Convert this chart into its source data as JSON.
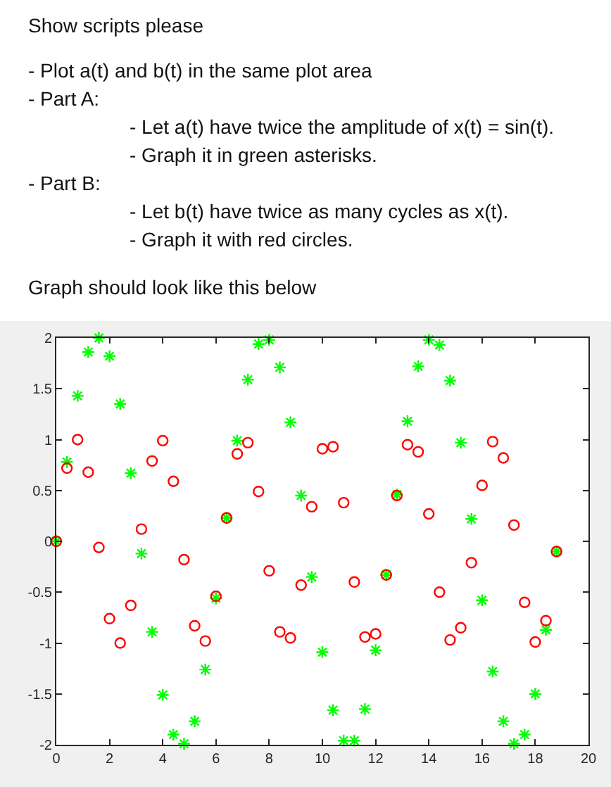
{
  "chart_data": {
    "type": "scatter",
    "title": "Show scripts please",
    "annotations": [
      "- Plot a(t) and b(t) in the same plot area",
      "- Part A:",
      "- Let a(t) have twice the amplitude of x(t) = sin(t).",
      "- Graph it in green asterisks.",
      "- Part B:",
      "- Let b(t) have twice as many cycles as x(t).",
      "- Graph it with red circles.",
      "Graph should look like this below"
    ],
    "x": [
      0,
      0.4,
      0.8,
      1.2,
      1.6,
      2.0,
      2.4,
      2.8,
      3.2,
      3.6,
      4.0,
      4.4,
      4.8,
      5.2,
      5.6,
      6.0,
      6.4,
      6.8,
      7.2,
      7.6,
      8.0,
      8.4,
      8.8,
      9.2,
      9.6,
      10.0,
      10.4,
      10.8,
      11.2,
      11.6,
      12.0,
      12.4,
      12.8,
      13.2,
      13.6,
      14.0,
      14.4,
      14.8,
      15.2,
      15.6,
      16.0,
      16.4,
      16.8,
      17.2,
      17.6,
      18.0,
      18.4,
      18.8
    ],
    "series": [
      {
        "color": "#00ff00",
        "marker": "cross",
        "values": [
          0,
          0.78,
          1.43,
          1.86,
          2.0,
          1.82,
          1.35,
          0.67,
          -0.12,
          -0.89,
          -1.51,
          -1.9,
          -1.99,
          -1.77,
          -1.26,
          -0.56,
          0.23,
          0.99,
          1.59,
          1.94,
          1.98,
          1.71,
          1.17,
          0.45,
          -0.35,
          -1.09,
          -1.66,
          -1.96,
          -1.96,
          -1.65,
          -1.07,
          -0.33,
          0.46,
          1.18,
          1.72,
          1.98,
          1.93,
          1.58,
          0.97,
          0.22,
          -0.58,
          -1.28,
          -1.77,
          -1.99,
          -1.9,
          -1.5,
          -0.87,
          -0.1
        ]
      },
      {
        "color": "#ff0000",
        "marker": "circle",
        "values": [
          0,
          0.72,
          1.0,
          0.68,
          -0.06,
          -0.76,
          -1.0,
          -0.63,
          0.12,
          0.79,
          0.99,
          0.59,
          -0.18,
          -0.83,
          -0.98,
          -0.54,
          0.23,
          0.86,
          0.97,
          0.49,
          -0.29,
          -0.89,
          -0.95,
          -0.43,
          0.34,
          0.91,
          0.93,
          0.38,
          -0.4,
          -0.94,
          -0.91,
          -0.33,
          0.45,
          0.95,
          0.88,
          0.27,
          -0.5,
          -0.97,
          -0.85,
          -0.21,
          0.55,
          0.98,
          0.82,
          0.16,
          -0.6,
          -0.99,
          -0.78,
          -0.1
        ]
      }
    ],
    "xlim": [
      0,
      20
    ],
    "xticks": [
      0,
      2,
      4,
      6,
      8,
      10,
      12,
      14,
      16,
      18,
      20
    ],
    "ylim": [
      -2,
      2
    ],
    "yticks": [
      -2,
      -1.5,
      -1,
      -0.5,
      0,
      0.5,
      1,
      1.5,
      2
    ],
    "grid": false
  }
}
